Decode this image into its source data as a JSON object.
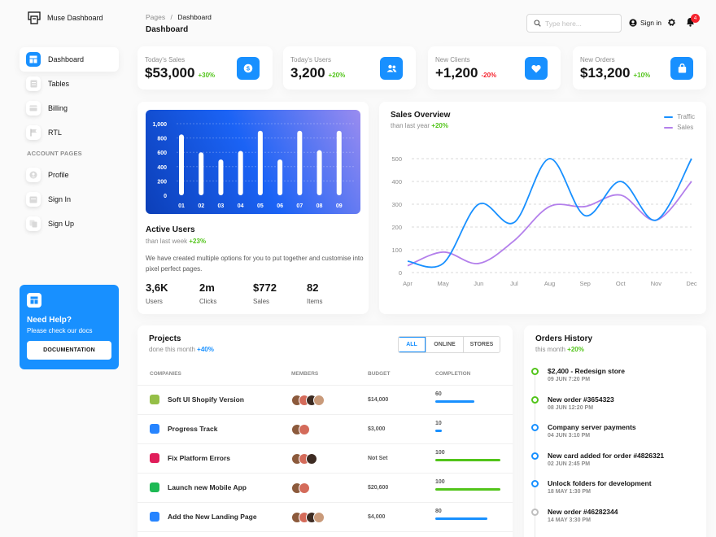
{
  "brand": {
    "name": "Muse Dashboard"
  },
  "sidebar": {
    "items": [
      {
        "label": "Dashboard",
        "icon": "dashboard-icon"
      },
      {
        "label": "Tables",
        "icon": "table-icon"
      },
      {
        "label": "Billing",
        "icon": "credit-card-icon"
      },
      {
        "label": "RTL",
        "icon": "flag-icon"
      }
    ],
    "section_label": "ACCOUNT PAGES",
    "account_items": [
      {
        "label": "Profile",
        "icon": "user-icon"
      },
      {
        "label": "Sign In",
        "icon": "sign-in-icon"
      },
      {
        "label": "Sign Up",
        "icon": "sign-up-icon"
      }
    ],
    "help": {
      "title": "Need Help?",
      "text": "Please check our docs",
      "button": "DOCUMENTATION"
    }
  },
  "header": {
    "breadcrumb_root": "Pages",
    "breadcrumb_sep": "/",
    "breadcrumb_current": "Dashboard",
    "title": "Dashboard",
    "search_placeholder": "Type here...",
    "signin_label": "Sign in",
    "notification_count": "4"
  },
  "stats": [
    {
      "label": "Today's Sales",
      "value": "$53,000",
      "delta": "+30%",
      "positive": true,
      "icon": "dollar-icon"
    },
    {
      "label": "Today's Users",
      "value": "3,200",
      "delta": "+20%",
      "positive": true,
      "icon": "users-icon"
    },
    {
      "label": "New Clients",
      "value": "+1,200",
      "delta": "-20%",
      "positive": false,
      "icon": "heart-icon"
    },
    {
      "label": "New Orders",
      "value": "$13,200",
      "delta": "+10%",
      "positive": true,
      "icon": "bag-icon"
    }
  ],
  "active_users": {
    "title": "Active Users",
    "subtitle_prefix": "than last week",
    "subtitle_delta": "+23%",
    "description": "We have created multiple options for you to put together and customise into pixel perfect pages.",
    "stats": [
      {
        "value": "3,6K",
        "label": "Users"
      },
      {
        "value": "2m",
        "label": "Clicks"
      },
      {
        "value": "$772",
        "label": "Sales"
      },
      {
        "value": "82",
        "label": "Items"
      }
    ]
  },
  "sales_overview": {
    "title": "Sales Overview",
    "subtitle_prefix": "than last year",
    "subtitle_delta": "+20%"
  },
  "chart_data": [
    {
      "type": "bar",
      "categories": [
        "01",
        "02",
        "03",
        "04",
        "05",
        "06",
        "07",
        "08",
        "09"
      ],
      "values": [
        850,
        600,
        500,
        620,
        900,
        500,
        900,
        630,
        900
      ],
      "ylim": [
        0,
        1000
      ],
      "yticks": [
        "0",
        "200",
        "400",
        "600",
        "800",
        "1,000"
      ],
      "title": "",
      "bar_color": "#ffffff",
      "grid": true
    },
    {
      "type": "line",
      "categories": [
        "Apr",
        "May",
        "Jun",
        "Jul",
        "Aug",
        "Sep",
        "Oct",
        "Nov",
        "Dec"
      ],
      "series": [
        {
          "name": "Traffic",
          "color": "#1890ff",
          "values": [
            50,
            40,
            300,
            220,
            500,
            250,
            400,
            230,
            500
          ]
        },
        {
          "name": "Sales",
          "color": "#b37feb",
          "values": [
            30,
            90,
            40,
            140,
            290,
            290,
            340,
            230,
            400
          ]
        }
      ],
      "ylim": [
        0,
        500
      ],
      "yticks": [
        "0",
        "100",
        "200",
        "300",
        "400",
        "500"
      ],
      "legend": "top-right",
      "grid": true
    }
  ],
  "projects": {
    "title": "Projects",
    "subtitle_prefix": "done this month",
    "subtitle_delta": "+40%",
    "filters": [
      "ALL",
      "ONLINE",
      "STORES"
    ],
    "columns": [
      "COMPANIES",
      "MEMBERS",
      "BUDGET",
      "COMPLETION"
    ],
    "rows": [
      {
        "company": "Soft UI Shopify Version",
        "icon": "shopify-icon",
        "icon_color": "#95bf47",
        "members": 4,
        "budget": "$14,000",
        "completion": "60",
        "progress": 60,
        "bar_color": "#1890ff"
      },
      {
        "company": "Progress Track",
        "icon": "atlassian-icon",
        "icon_color": "#2684ff",
        "members": 2,
        "budget": "$3,000",
        "completion": "10",
        "progress": 10,
        "bar_color": "#1890ff"
      },
      {
        "company": "Fix Platform Errors",
        "icon": "slack-icon",
        "icon_color": "#e01e5a",
        "members": 3,
        "budget": "Not Set",
        "completion": "100",
        "progress": 100,
        "bar_color": "#52c41a"
      },
      {
        "company": "Launch new Mobile App",
        "icon": "spotify-icon",
        "icon_color": "#1db954",
        "members": 2,
        "budget": "$20,600",
        "completion": "100",
        "progress": 100,
        "bar_color": "#52c41a"
      },
      {
        "company": "Add the New Landing Page",
        "icon": "jira-icon",
        "icon_color": "#2684ff",
        "members": 4,
        "budget": "$4,000",
        "completion": "80",
        "progress": 80,
        "bar_color": "#1890ff"
      }
    ]
  },
  "orders": {
    "title": "Orders History",
    "subtitle_prefix": "this month",
    "subtitle_delta": "+20%",
    "items": [
      {
        "title": "$2,400 - Redesign store",
        "date": "09 JUN 7:20 PM",
        "color": "#52c41a"
      },
      {
        "title": "New order #3654323",
        "date": "08 JUN 12:20 PM",
        "color": "#52c41a"
      },
      {
        "title": "Company server payments",
        "date": "04 JUN 3:10 PM",
        "color": "#1890ff"
      },
      {
        "title": "New card added for order #4826321",
        "date": "02 JUN 2:45 PM",
        "color": "#1890ff"
      },
      {
        "title": "Unlock folders for development",
        "date": "18 MAY 1:30 PM",
        "color": "#1890ff"
      },
      {
        "title": "New order #46282344",
        "date": "14 MAY 3:30 PM",
        "color": "#bfbfbf"
      }
    ]
  }
}
